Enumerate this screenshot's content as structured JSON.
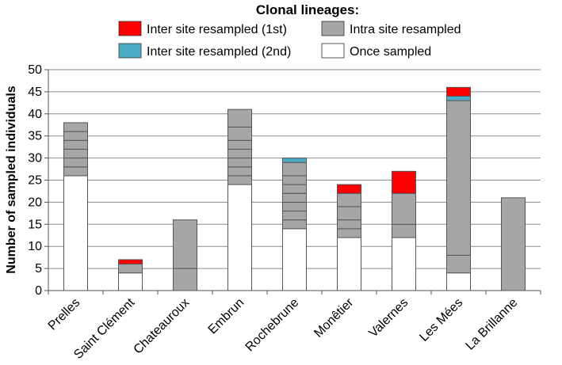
{
  "chart_data": {
    "type": "bar",
    "stacked": true,
    "title": "",
    "xlabel": "",
    "ylabel": "Number of sampled individuals",
    "ylim": [
      0,
      50
    ],
    "yticks": [
      0,
      5,
      10,
      15,
      20,
      25,
      30,
      35,
      40,
      45,
      50
    ],
    "grid": "horizontal",
    "legend": {
      "title": "Clonal lineages:",
      "placement": "top",
      "entries": [
        {
          "key": "inter1",
          "label": "Inter site resampled (1st)",
          "color": "#ff0000"
        },
        {
          "key": "intra",
          "label": "Intra site resampled",
          "color": "#a6a6a6"
        },
        {
          "key": "inter2",
          "label": "Inter site resampled (2nd)",
          "color": "#4bacc6"
        },
        {
          "key": "once",
          "label": "Once sampled",
          "color": "#ffffff"
        }
      ]
    },
    "categories": [
      "Prelles",
      "Saint Clément",
      "Chateauroux",
      "Embrun",
      "Rochebrune",
      "Monêtier",
      "Valernes",
      "Les Mées",
      "La Brillanne"
    ],
    "bars": [
      {
        "segments": [
          {
            "type": "once",
            "value": 26
          },
          {
            "type": "intra",
            "value": 2
          },
          {
            "type": "intra",
            "value": 2
          },
          {
            "type": "intra",
            "value": 2
          },
          {
            "type": "intra",
            "value": 2
          },
          {
            "type": "intra",
            "value": 2
          },
          {
            "type": "intra",
            "value": 2
          }
        ]
      },
      {
        "segments": [
          {
            "type": "once",
            "value": 4
          },
          {
            "type": "intra",
            "value": 2
          },
          {
            "type": "inter1",
            "value": 1
          }
        ]
      },
      {
        "segments": [
          {
            "type": "intra",
            "value": 5
          },
          {
            "type": "intra",
            "value": 11
          }
        ]
      },
      {
        "segments": [
          {
            "type": "once",
            "value": 24
          },
          {
            "type": "intra",
            "value": 2
          },
          {
            "type": "intra",
            "value": 2
          },
          {
            "type": "intra",
            "value": 2
          },
          {
            "type": "intra",
            "value": 2
          },
          {
            "type": "intra",
            "value": 2
          },
          {
            "type": "intra",
            "value": 3
          },
          {
            "type": "intra",
            "value": 4
          }
        ]
      },
      {
        "segments": [
          {
            "type": "once",
            "value": 14
          },
          {
            "type": "intra",
            "value": 2
          },
          {
            "type": "intra",
            "value": 2
          },
          {
            "type": "intra",
            "value": 2
          },
          {
            "type": "intra",
            "value": 2
          },
          {
            "type": "intra",
            "value": 2
          },
          {
            "type": "intra",
            "value": 2
          },
          {
            "type": "intra",
            "value": 3
          },
          {
            "type": "inter2",
            "value": 1
          }
        ]
      },
      {
        "segments": [
          {
            "type": "once",
            "value": 12
          },
          {
            "type": "intra",
            "value": 2
          },
          {
            "type": "intra",
            "value": 2
          },
          {
            "type": "intra",
            "value": 3
          },
          {
            "type": "intra",
            "value": 3
          },
          {
            "type": "inter1",
            "value": 2
          }
        ]
      },
      {
        "segments": [
          {
            "type": "once",
            "value": 12
          },
          {
            "type": "intra",
            "value": 3
          },
          {
            "type": "intra",
            "value": 7
          },
          {
            "type": "inter1",
            "value": 5
          }
        ]
      },
      {
        "segments": [
          {
            "type": "once",
            "value": 4
          },
          {
            "type": "intra",
            "value": 4
          },
          {
            "type": "intra",
            "value": 35
          },
          {
            "type": "inter2",
            "value": 1
          },
          {
            "type": "inter1",
            "value": 2
          }
        ]
      },
      {
        "segments": [
          {
            "type": "intra",
            "value": 21
          }
        ]
      }
    ]
  }
}
